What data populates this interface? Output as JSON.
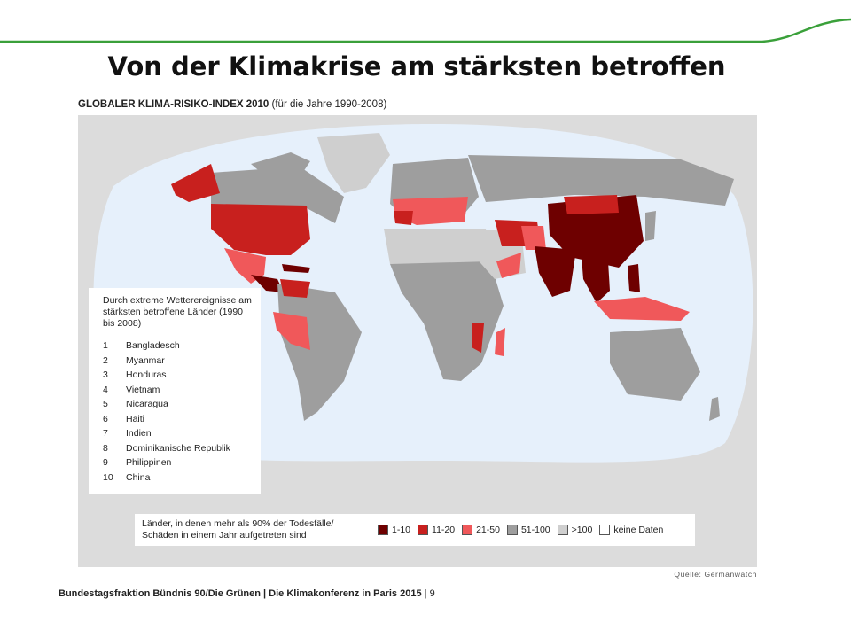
{
  "slide": {
    "title": "Von der Klimakrise am stärksten betroffen",
    "footer_org": "Bundestagsfraktion Bündnis 90/Die Grünen | Die Klimakonferenz in Paris 2015",
    "footer_sep": " | ",
    "page_number": "9",
    "accent_color": "#3aa03a"
  },
  "map": {
    "heading_bold": "GLOBALER KLIMA-RISIKO-INDEX 2010",
    "heading_rest": " (für die Jahre 1990-2008)",
    "source": "Quelle: Germanwatch",
    "ranking_title": "Durch extreme Wetterereignisse am stärksten betroffene Länder (1990 bis 2008)",
    "ranking": [
      {
        "rank": "1",
        "country": "Bangladesch"
      },
      {
        "rank": "2",
        "country": "Myanmar"
      },
      {
        "rank": "3",
        "country": "Honduras"
      },
      {
        "rank": "4",
        "country": "Vietnam"
      },
      {
        "rank": "5",
        "country": "Nicaragua"
      },
      {
        "rank": "6",
        "country": "Haiti"
      },
      {
        "rank": "7",
        "country": "Indien"
      },
      {
        "rank": "8",
        "country": "Dominikanische Republik"
      },
      {
        "rank": "9",
        "country": "Philippinen"
      },
      {
        "rank": "10",
        "country": "China"
      }
    ],
    "legend_note": "Länder, in denen mehr als 90% der Todesfälle/ Schäden in einem Jahr aufgetreten sind",
    "legend": [
      {
        "label": "1-10",
        "color": "#6e0000"
      },
      {
        "label": "11-20",
        "color": "#c8201e"
      },
      {
        "label": "21-50",
        "color": "#f0585a"
      },
      {
        "label": "51-100",
        "color": "#9e9e9e"
      },
      {
        "label": ">100",
        "color": "#cfcfcf"
      },
      {
        "label": "keine Daten",
        "color": "#ffffff"
      }
    ],
    "colors": {
      "ocean": "#e6f0fb",
      "frame": "#dcdcdc",
      "rank_1_10": "#6e0000",
      "rank_11_20": "#c8201e",
      "rank_21_50": "#f0585a",
      "rank_51_100": "#9e9e9e",
      "rank_over_100": "#cfcfcf",
      "no_data": "#ffffff"
    }
  }
}
